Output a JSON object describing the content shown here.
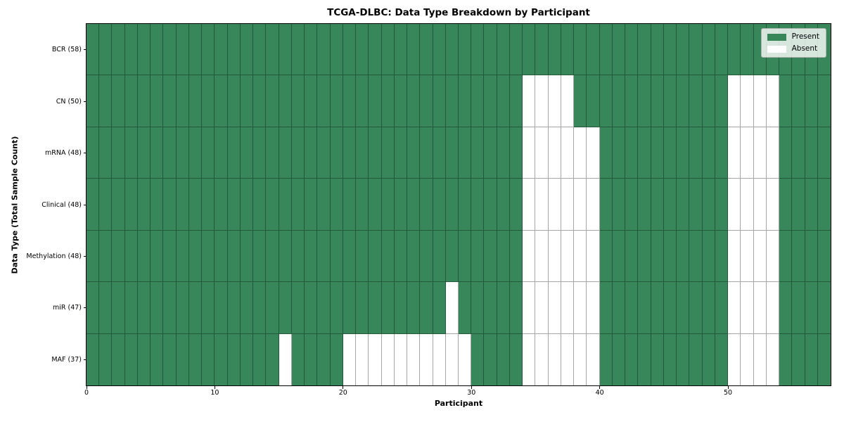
{
  "title": "TCGA-DLBC: Data Type Breakdown by Participant",
  "axes": {
    "xlabel": "Participant",
    "ylabel": "Data Type (Total Sample Count)"
  },
  "legend": {
    "entries": [
      {
        "label": "Present",
        "swatch": "present-color"
      },
      {
        "label": "Absent",
        "swatch": "absent-color"
      }
    ]
  },
  "colors": {
    "present": "#38875a",
    "absent": "#ffffff",
    "grid_line": "rgba(0,0,0,0.35)",
    "frame": "#000000",
    "legend_bg": "rgba(255,255,255,0.8)"
  },
  "chart_data": {
    "type": "heatmap",
    "title": "TCGA-DLBC: Data Type Breakdown by Participant",
    "xlabel": "Participant",
    "ylabel": "Data Type (Total Sample Count)",
    "legend_entries": [
      "Present",
      "Absent"
    ],
    "legend_position": "upper right",
    "grid": true,
    "n_participants": 58,
    "x_axis": {
      "range": [
        0,
        58
      ],
      "ticks": [
        0,
        10,
        20,
        30,
        40,
        50
      ]
    },
    "rows": [
      {
        "name": "BCR",
        "label": "BCR (58)",
        "present_count": 58,
        "absent_participants": []
      },
      {
        "name": "CN",
        "label": "CN (50)",
        "present_count": 50,
        "absent_participants": [
          34,
          35,
          36,
          37,
          50,
          51,
          52,
          53
        ]
      },
      {
        "name": "mRNA",
        "label": "mRNA (48)",
        "present_count": 48,
        "absent_participants": [
          34,
          35,
          36,
          37,
          38,
          39,
          50,
          51,
          52,
          53
        ]
      },
      {
        "name": "Clinical",
        "label": "Clinical (48)",
        "present_count": 48,
        "absent_participants": [
          34,
          35,
          36,
          37,
          38,
          39,
          50,
          51,
          52,
          53
        ]
      },
      {
        "name": "Methylation",
        "label": "Methylation (48)",
        "present_count": 48,
        "absent_participants": [
          34,
          35,
          36,
          37,
          38,
          39,
          50,
          51,
          52,
          53
        ]
      },
      {
        "name": "miR",
        "label": "miR (47)",
        "present_count": 47,
        "absent_participants": [
          28,
          34,
          35,
          36,
          37,
          38,
          39,
          50,
          51,
          52,
          53
        ]
      },
      {
        "name": "MAF",
        "label": "MAF (37)",
        "present_count": 37,
        "absent_participants": [
          15,
          20,
          21,
          22,
          23,
          24,
          25,
          26,
          27,
          28,
          29,
          34,
          35,
          36,
          37,
          38,
          39,
          50,
          51,
          52,
          53
        ]
      }
    ]
  }
}
